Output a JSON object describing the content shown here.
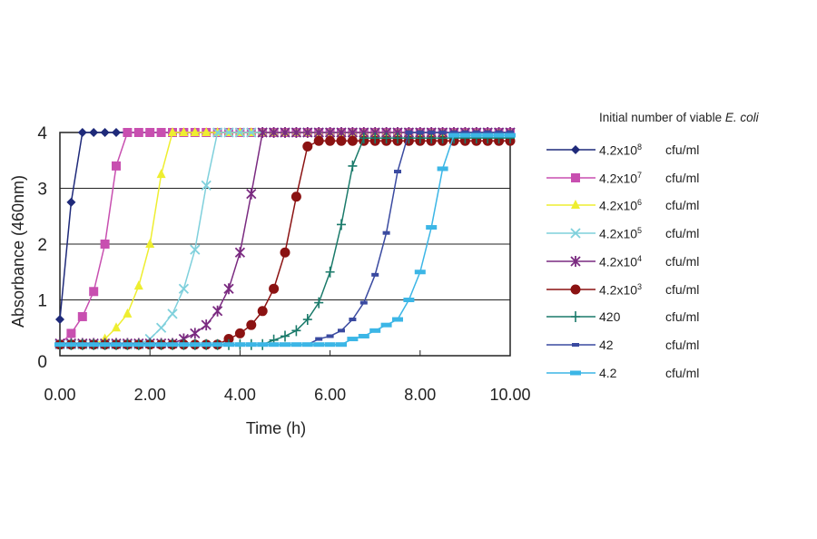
{
  "chart_data": {
    "type": "line",
    "xlabel": "Time (h)",
    "ylabel": "Absorbance (460nm)",
    "xlim": [
      0,
      10
    ],
    "ylim": [
      0,
      4
    ],
    "x_ticks": [
      "0.00",
      "2.00",
      "4.00",
      "6.00",
      "8.00",
      "10.00"
    ],
    "y_ticks": [
      "0",
      "1",
      "2",
      "3",
      "4"
    ],
    "grid": "horizontal",
    "legend_placement": "right",
    "legend_title": "Initial number of viable",
    "legend_title_italic": "E. coli",
    "x": [
      0,
      0.25,
      0.5,
      0.75,
      1,
      1.25,
      1.5,
      1.75,
      2,
      2.25,
      2.5,
      2.75,
      3,
      3.25,
      3.5,
      3.75,
      4,
      4.25,
      4.5,
      4.75,
      5,
      5.25,
      5.5,
      5.75,
      6,
      6.25,
      6.5,
      6.75,
      7,
      7.25,
      7.5,
      7.75,
      8,
      8.25,
      8.5,
      8.75,
      9,
      9.25,
      9.5,
      9.75,
      10
    ],
    "series": [
      {
        "name": "4.2x10",
        "sup": "8",
        "unit": "cfu/ml",
        "color": "#1f2a7a",
        "marker": "diamond",
        "values": [
          0.65,
          2.75,
          4,
          4,
          4,
          4,
          4,
          4,
          4,
          4,
          4,
          4,
          4,
          4,
          4,
          4,
          4,
          4,
          4,
          4,
          4,
          4,
          4,
          4,
          4,
          4,
          4,
          4,
          4,
          4,
          4,
          4,
          4,
          4,
          4,
          4,
          4,
          4,
          4,
          4,
          4
        ]
      },
      {
        "name": "4.2x10",
        "sup": "7",
        "unit": "cfu/ml",
        "color": "#c84fb0",
        "marker": "square",
        "values": [
          0.2,
          0.4,
          0.7,
          1.15,
          2.0,
          3.4,
          4,
          4,
          4,
          4,
          4,
          4,
          4,
          4,
          4,
          4,
          4,
          4,
          4,
          4,
          4,
          4,
          4,
          4,
          4,
          4,
          4,
          4,
          4,
          4,
          4,
          4,
          4,
          4,
          4,
          4,
          4,
          4,
          4,
          4,
          4
        ]
      },
      {
        "name": "4.2x10",
        "sup": "6",
        "unit": "cfu/ml",
        "color": "#eeee30",
        "marker": "triangle",
        "values": [
          0.2,
          0.2,
          0.2,
          0.2,
          0.3,
          0.5,
          0.75,
          1.25,
          2.0,
          3.25,
          4,
          4,
          4,
          4,
          4,
          4,
          4,
          4,
          4,
          4,
          4,
          4,
          4,
          4,
          4,
          4,
          4,
          4,
          4,
          4,
          4,
          4,
          4,
          4,
          4,
          4,
          4,
          4,
          4,
          4,
          4
        ]
      },
      {
        "name": "4.2x10",
        "sup": "5",
        "unit": "cfu/ml",
        "color": "#7fd0dc",
        "marker": "x",
        "values": [
          0.2,
          0.2,
          0.2,
          0.2,
          0.2,
          0.2,
          0.2,
          0.2,
          0.3,
          0.5,
          0.75,
          1.2,
          1.9,
          3.05,
          4,
          4,
          4,
          4,
          4,
          4,
          4,
          4,
          4,
          4,
          4,
          4,
          4,
          4,
          4,
          4,
          4,
          4,
          4,
          4,
          4,
          4,
          4,
          4,
          4,
          4,
          4
        ]
      },
      {
        "name": "4.2x10",
        "sup": "4",
        "unit": "cfu/ml",
        "color": "#7a2a80",
        "marker": "star",
        "values": [
          0.22,
          0.22,
          0.22,
          0.22,
          0.22,
          0.22,
          0.22,
          0.22,
          0.22,
          0.22,
          0.22,
          0.3,
          0.4,
          0.55,
          0.8,
          1.2,
          1.85,
          2.9,
          4,
          4,
          4,
          4,
          4,
          4,
          4,
          4,
          4,
          4,
          4,
          4,
          4,
          4,
          4,
          4,
          4,
          4,
          4,
          4,
          4,
          4,
          4
        ]
      },
      {
        "name": "4.2x10",
        "sup": "3",
        "unit": "cfu/ml",
        "color": "#8b1212",
        "marker": "circle",
        "values": [
          0.2,
          0.2,
          0.2,
          0.2,
          0.2,
          0.2,
          0.2,
          0.2,
          0.2,
          0.2,
          0.2,
          0.2,
          0.2,
          0.2,
          0.2,
          0.3,
          0.4,
          0.55,
          0.8,
          1.2,
          1.85,
          2.85,
          3.75,
          3.85,
          3.85,
          3.85,
          3.85,
          3.85,
          3.85,
          3.85,
          3.85,
          3.85,
          3.85,
          3.85,
          3.85,
          3.85,
          3.85,
          3.85,
          3.85,
          3.85,
          3.85
        ]
      },
      {
        "name": "420",
        "unit": "cfu/ml",
        "color": "#1a7a6a",
        "marker": "plus",
        "values": [
          0.2,
          0.2,
          0.2,
          0.2,
          0.2,
          0.2,
          0.2,
          0.2,
          0.2,
          0.2,
          0.2,
          0.2,
          0.2,
          0.2,
          0.2,
          0.2,
          0.2,
          0.2,
          0.2,
          0.28,
          0.35,
          0.45,
          0.65,
          0.95,
          1.5,
          2.35,
          3.4,
          3.9,
          3.9,
          3.9,
          3.9,
          3.9,
          3.9,
          3.9,
          3.9,
          3.9,
          3.9,
          3.9,
          3.9,
          3.9,
          3.9
        ]
      },
      {
        "name": "42",
        "unit": "cfu/ml",
        "color": "#3a4aa0",
        "marker": "dash",
        "values": [
          0.2,
          0.2,
          0.2,
          0.2,
          0.2,
          0.2,
          0.2,
          0.2,
          0.2,
          0.2,
          0.2,
          0.2,
          0.2,
          0.2,
          0.2,
          0.2,
          0.2,
          0.2,
          0.2,
          0.2,
          0.2,
          0.2,
          0.2,
          0.3,
          0.35,
          0.45,
          0.65,
          0.95,
          1.45,
          2.2,
          3.3,
          4,
          4,
          4,
          4,
          4,
          4,
          4,
          4,
          4,
          4
        ]
      },
      {
        "name": "4.2",
        "unit": "cfu/ml",
        "color": "#3cb6e6",
        "marker": "wide-dash",
        "values": [
          0.2,
          0.2,
          0.2,
          0.2,
          0.2,
          0.2,
          0.2,
          0.2,
          0.2,
          0.2,
          0.2,
          0.2,
          0.2,
          0.2,
          0.2,
          0.2,
          0.2,
          0.2,
          0.2,
          0.2,
          0.2,
          0.2,
          0.2,
          0.2,
          0.2,
          0.2,
          0.3,
          0.35,
          0.45,
          0.55,
          0.65,
          1.0,
          1.5,
          2.3,
          3.35,
          3.95,
          3.95,
          3.95,
          3.95,
          3.95,
          3.95
        ]
      }
    ]
  }
}
